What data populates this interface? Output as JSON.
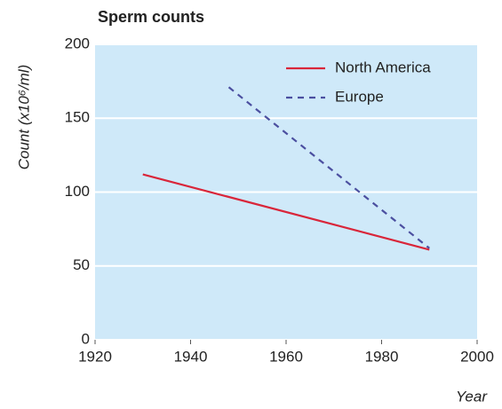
{
  "chart_data": {
    "type": "line",
    "title": "Sperm counts",
    "xlabel": "Year",
    "ylabel": "Count (x10⁶/ml)",
    "series": [
      {
        "name": "North America",
        "color": "#d9263a",
        "style": "solid",
        "x": [
          1930,
          1990
        ],
        "values": [
          112,
          61
        ]
      },
      {
        "name": "Europe",
        "color": "#4b4fa0",
        "style": "dashed",
        "x": [
          1948,
          1990
        ],
        "values": [
          171,
          62
        ]
      }
    ],
    "xlim": [
      1920,
      2000
    ],
    "xticks": [
      1920,
      1940,
      1960,
      1980,
      2000
    ],
    "ylim": [
      0,
      200
    ],
    "yticks": [
      0,
      50,
      100,
      150,
      200
    ],
    "grid": true,
    "legend": "upper right",
    "background": "#cfe9f9"
  }
}
